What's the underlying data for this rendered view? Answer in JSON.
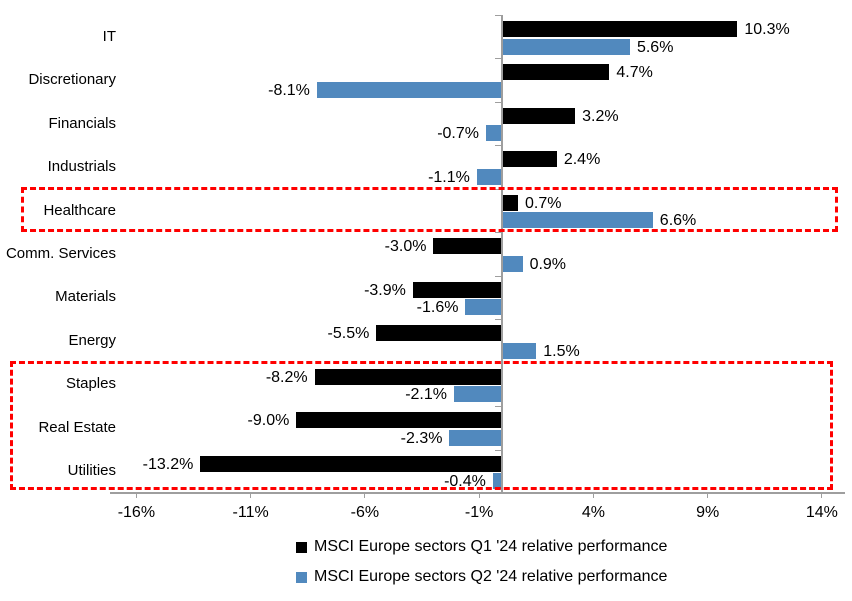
{
  "chart_data": {
    "type": "bar",
    "orientation": "horizontal",
    "title": "",
    "categories": [
      "IT",
      "Discretionary",
      "Financials",
      "Industrials",
      "Healthcare",
      "Comm. Services",
      "Materials",
      "Energy",
      "Staples",
      "Real Estate",
      "Utilities"
    ],
    "series": [
      {
        "name": "MSCI Europe sectors Q1 '24 relative performance",
        "color": "#000000",
        "values": [
          10.3,
          4.7,
          3.2,
          2.4,
          0.7,
          -3.0,
          -3.9,
          -5.5,
          -8.2,
          -9.0,
          -13.2
        ]
      },
      {
        "name": "MSCI Europe sectors Q2 '24 relative performance",
        "color": "#5189BE",
        "values": [
          5.6,
          -8.1,
          -0.7,
          -1.1,
          6.6,
          0.9,
          -1.6,
          1.5,
          -2.1,
          -2.3,
          -0.4
        ]
      }
    ],
    "data_labels": {
      "format": "one decimal + %",
      "position": "outside end"
    },
    "x_ticks": [
      {
        "value": -16,
        "label": "-16%"
      },
      {
        "value": -11,
        "label": "-11%"
      },
      {
        "value": -6,
        "label": "-6%"
      },
      {
        "value": -1,
        "label": "-1%"
      },
      {
        "value": 4,
        "label": "4%"
      },
      {
        "value": 9,
        "label": "9%"
      },
      {
        "value": 14,
        "label": "14%"
      }
    ],
    "xlim": [
      -17.2,
      15
    ],
    "grid": false,
    "legend_position": "bottom",
    "axis_color": "#9E9E9E",
    "highlight_color": "#FF0000",
    "highlights": [
      {
        "rows": [
          4
        ],
        "note": "red dashed box around Healthcare"
      },
      {
        "rows": [
          8,
          9,
          10
        ],
        "note": "red dashed box around Staples, Real Estate and Utilities"
      }
    ]
  },
  "legend": {
    "items": [
      {
        "label": "MSCI Europe sectors Q1 '24 relative performance",
        "color": "#000000"
      },
      {
        "label": "MSCI Europe sectors Q2 '24 relative performance",
        "color": "#5189BE"
      }
    ]
  }
}
